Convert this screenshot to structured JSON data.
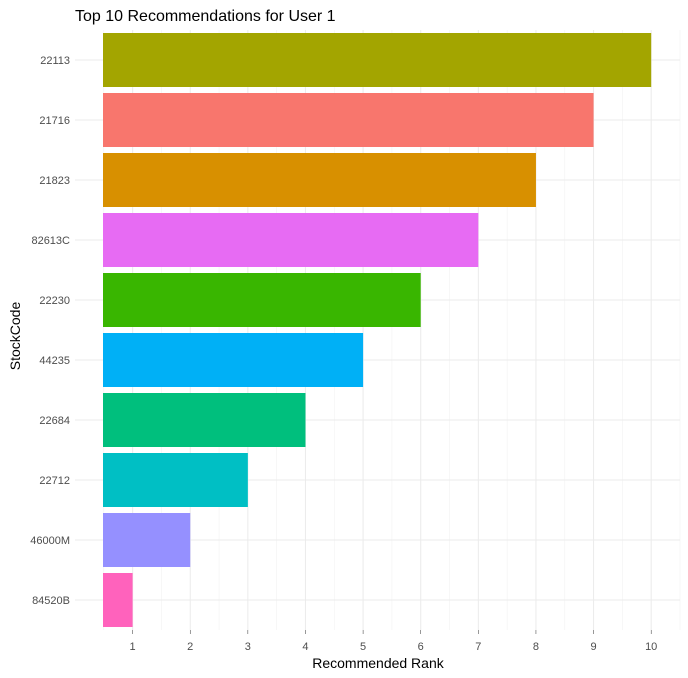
{
  "chart_data": {
    "type": "bar",
    "orientation": "horizontal",
    "title": "Top 10 Recommendations for User 1",
    "xlabel": "Recommended Rank",
    "ylabel": "StockCode",
    "xlim": [
      0,
      10.5
    ],
    "xticks": [
      1,
      2,
      3,
      4,
      5,
      6,
      7,
      8,
      9,
      10
    ],
    "grid": true,
    "legend": "none",
    "categories": [
      "22113",
      "21716",
      "21823",
      "82613C",
      "22230",
      "44235",
      "22684",
      "22712",
      "46000M",
      "84520B"
    ],
    "values": [
      10,
      9,
      8,
      7,
      6,
      5,
      4,
      3,
      2,
      1
    ],
    "colors": [
      "#A3A500",
      "#F8766D",
      "#D89000",
      "#E76BF3",
      "#39B600",
      "#00B0F6",
      "#00BF7D",
      "#00BFC4",
      "#9590FF",
      "#FF62BC"
    ]
  }
}
